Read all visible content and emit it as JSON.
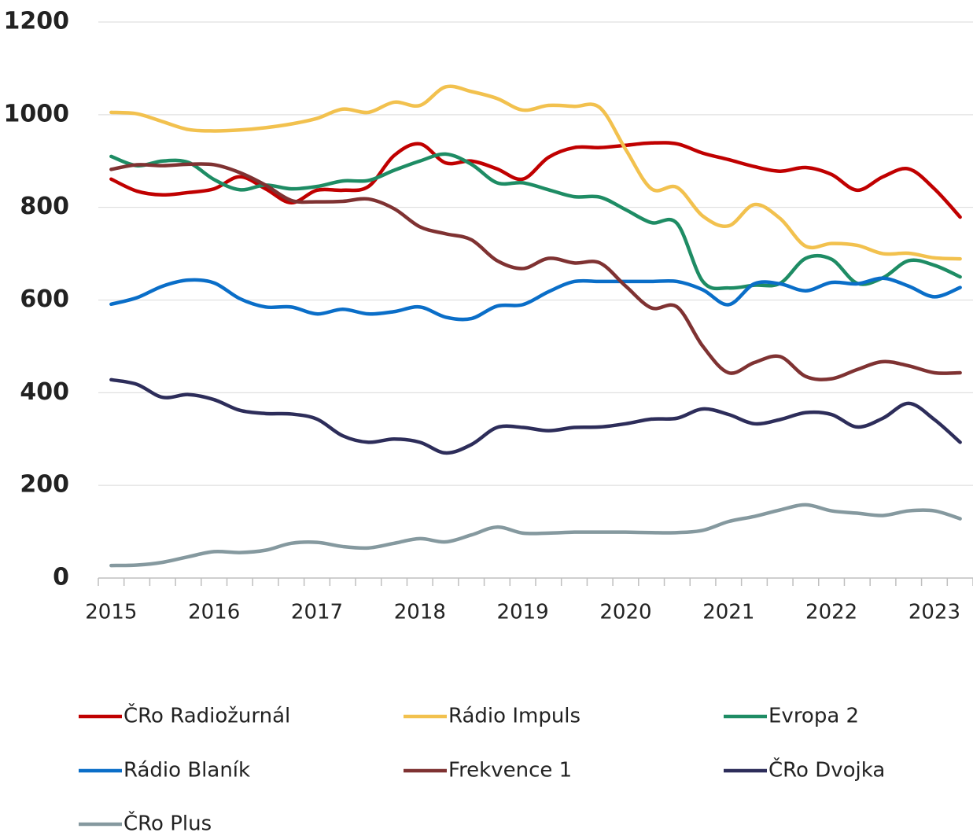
{
  "chart_data": {
    "type": "line",
    "categories": [
      "2015",
      null,
      null,
      null,
      "2016",
      null,
      null,
      null,
      "2017",
      null,
      null,
      null,
      "2018",
      null,
      null,
      null,
      "2019",
      null,
      null,
      null,
      "2020",
      null,
      null,
      null,
      "2021",
      null,
      null,
      null,
      "2022",
      null,
      null,
      null,
      "2023",
      null
    ],
    "series": [
      {
        "name": "ČRo Radiožurnál",
        "color": "#c00000",
        "values": [
          861,
          835,
          827,
          832,
          840,
          866,
          840,
          810,
          837,
          837,
          845,
          912,
          937,
          896,
          900,
          883,
          861,
          908,
          929,
          929,
          934,
          939,
          937,
          917,
          903,
          888,
          878,
          886,
          871,
          837,
          866,
          883,
          840,
          779
        ]
      },
      {
        "name": "Rádio Impuls",
        "color": "#f2c14e",
        "values": [
          1005,
          1002,
          985,
          968,
          965,
          967,
          972,
          980,
          992,
          1012,
          1005,
          1027,
          1020,
          1060,
          1050,
          1035,
          1010,
          1020,
          1018,
          1015,
          925,
          840,
          843,
          781,
          760,
          806,
          776,
          716,
          722,
          718,
          700,
          701,
          691,
          689
        ]
      },
      {
        "name": "Evropa 2",
        "color": "#1e8c64",
        "values": [
          910,
          890,
          900,
          897,
          860,
          838,
          848,
          840,
          845,
          857,
          858,
          880,
          900,
          915,
          893,
          853,
          853,
          838,
          823,
          822,
          795,
          767,
          765,
          640,
          626,
          632,
          636,
          690,
          688,
          636,
          648,
          685,
          675,
          650
        ]
      },
      {
        "name": "Rádio Blaník",
        "color": "#0a6ec8",
        "values": [
          591,
          605,
          630,
          643,
          637,
          603,
          585,
          585,
          570,
          580,
          570,
          575,
          585,
          563,
          560,
          587,
          590,
          618,
          640,
          640,
          640,
          640,
          640,
          622,
          590,
          635,
          635,
          620,
          638,
          635,
          647,
          630,
          607,
          627
        ]
      },
      {
        "name": "Frekvence 1",
        "color": "#7f3232",
        "values": [
          882,
          892,
          890,
          893,
          892,
          875,
          848,
          815,
          812,
          813,
          818,
          797,
          758,
          743,
          730,
          685,
          668,
          690,
          680,
          680,
          630,
          583,
          585,
          500,
          443,
          465,
          478,
          435,
          430,
          450,
          467,
          458,
          443,
          443
        ]
      },
      {
        "name": "ČRo Dvojka",
        "color": "#2d2d5a",
        "values": [
          428,
          418,
          390,
          396,
          385,
          362,
          355,
          354,
          343,
          307,
          293,
          300,
          293,
          270,
          288,
          325,
          325,
          318,
          325,
          326,
          333,
          343,
          345,
          365,
          353,
          333,
          342,
          357,
          353,
          326,
          345,
          377,
          342,
          293
        ]
      },
      {
        "name": "ČRo Plus",
        "color": "#85999f",
        "values": [
          27,
          28,
          34,
          46,
          57,
          55,
          60,
          75,
          77,
          68,
          65,
          75,
          85,
          78,
          93,
          110,
          97,
          97,
          99,
          99,
          99,
          98,
          98,
          103,
          122,
          133,
          147,
          158,
          145,
          140,
          135,
          145,
          145,
          128
        ]
      }
    ],
    "ylim": [
      0,
      1200
    ],
    "yticks": [
      0,
      200,
      400,
      600,
      800,
      1000,
      1200
    ],
    "grid": true
  }
}
